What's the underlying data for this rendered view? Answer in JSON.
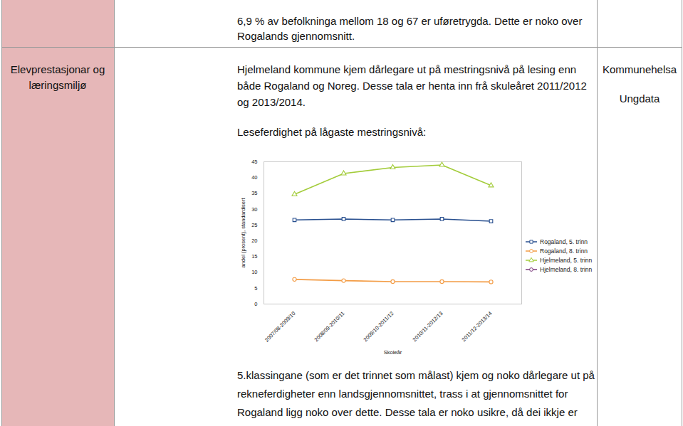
{
  "row1": {
    "text": [
      "6,9 % av befolkninga mellom 18 og 67 er uføretrygda. Dette er noko over",
      "Rogalands gjennomsnitt."
    ]
  },
  "row2": {
    "heading": [
      "Elevprestasjonar og",
      "læringsmiljø"
    ],
    "text": [
      "Hjelmeland kommune kjem dårlegare ut på mestringsnivå på lesing enn",
      "både Rogaland og Noreg. Desse tala er henta inn frå skuleåret 2011/2012",
      "og 2013/2014."
    ],
    "sources": [
      "Kommunehelsa",
      "Ungdata"
    ],
    "chart_caption": "Leseferdighet på lågaste mestringsnivå:",
    "after_chart": [
      "5.klassingane (som er det trinnet som målast) kjem og noko dårlegare ut på",
      "rekneferdigheter enn landsgjennomsnittet, trass i at gjennomsnittet for",
      "Rogaland ligg noko over dette. Desse tala er noko usikre, då dei ikkje er"
    ]
  },
  "chart_data": {
    "type": "line",
    "x_label": "Skoleår",
    "y_label": "andel (prosent), standardisert",
    "categories": [
      "2007/08-2009/10",
      "2008/09-2010/11",
      "2009/10-2011/12",
      "2010/11-2012/13",
      "2011/12-2013/14"
    ],
    "series": [
      {
        "name": "Rogaland, 5. trinn",
        "color": "#284f8f",
        "marker": "square",
        "values": [
          26.6,
          26.9,
          26.6,
          26.9,
          26.2
        ]
      },
      {
        "name": "Rogaland, 8. trinn",
        "color": "#f39c45",
        "marker": "circle",
        "values": [
          7.8,
          7.4,
          7.1,
          7.1,
          7.0
        ]
      },
      {
        "name": "Hjelmeland, 5. trinn",
        "color": "#a3cc3a",
        "marker": "triangle",
        "values": [
          34.7,
          41.3,
          43.2,
          44.0,
          37.5
        ]
      },
      {
        "name": "Hjelmeland, 8. trinn",
        "color": "#7a3a7c",
        "marker": "circle",
        "values": [
          null,
          null,
          null,
          null,
          null
        ]
      }
    ],
    "ylim": [
      0,
      45
    ],
    "yticks": [
      0,
      5,
      10,
      15,
      20,
      25,
      30,
      35,
      40,
      45
    ],
    "grid": false,
    "legend": "right"
  }
}
